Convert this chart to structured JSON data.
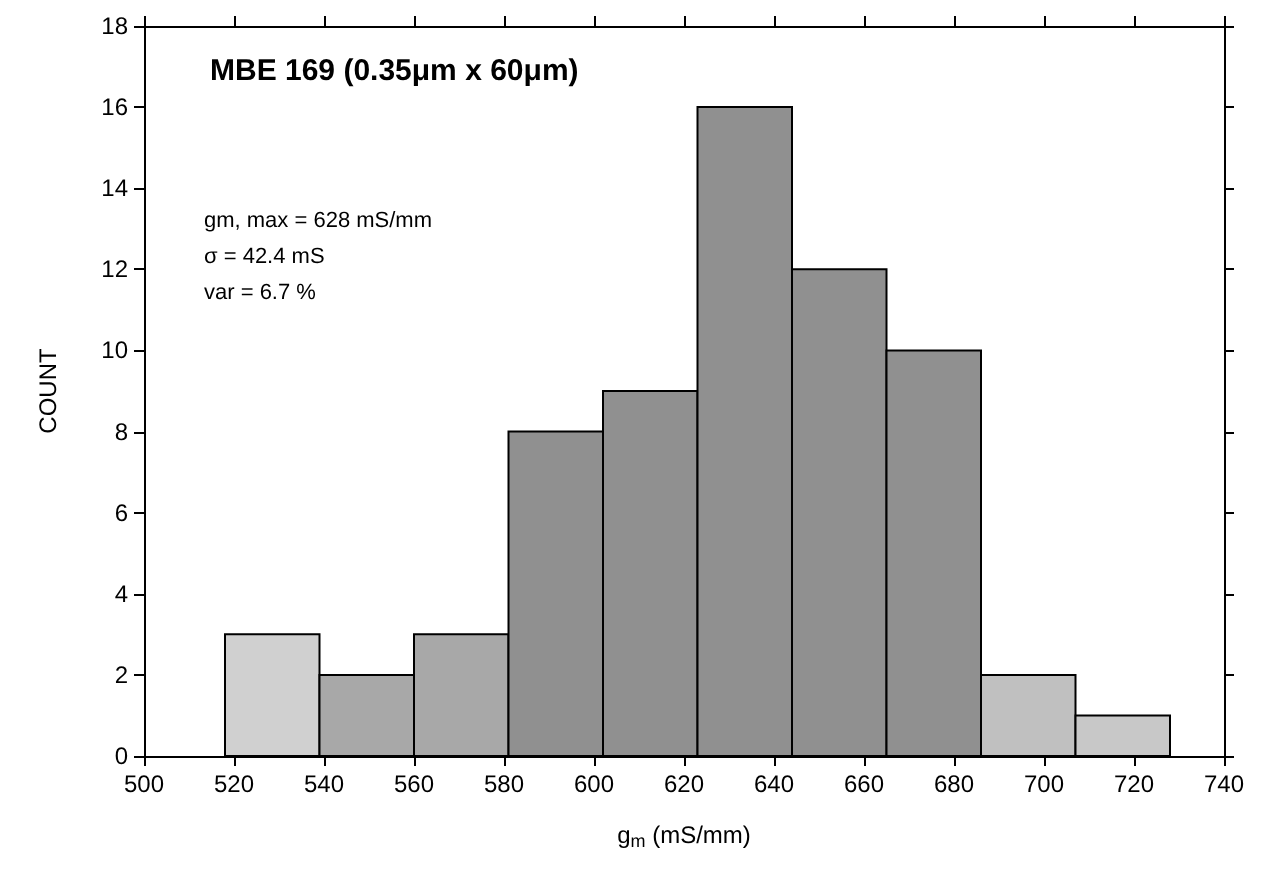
{
  "chart_data": {
    "type": "histogram",
    "title": "MBE 169 (0.35μm x 60μm)",
    "xlabel": "g$_{m}$ (mS/mm)",
    "ylabel": "COUNT",
    "bins": [
      518,
      539,
      560,
      581,
      602,
      623,
      644,
      665,
      686,
      707,
      728
    ],
    "values": [
      3,
      2,
      3,
      8,
      9,
      16,
      12,
      10,
      2,
      1
    ],
    "colors": [
      "#d0d0d0",
      "#a8a8a8",
      "#a8a8a8",
      "#909090",
      "#909090",
      "#909090",
      "#909090",
      "#909090",
      "#c0c0c0",
      "#c8c8c8"
    ],
    "xlim": [
      500,
      740
    ],
    "xticks": [
      500,
      520,
      540,
      560,
      580,
      600,
      620,
      640,
      660,
      680,
      700,
      720,
      740
    ],
    "ylim": [
      0,
      18
    ],
    "yticks": [
      0,
      2,
      4,
      6,
      8,
      10,
      12,
      14,
      16,
      18
    ],
    "annotations": [
      "gm, max = 628 mS/mm",
      "σ = 42.4 mS",
      "var = 6.7 %"
    ]
  }
}
